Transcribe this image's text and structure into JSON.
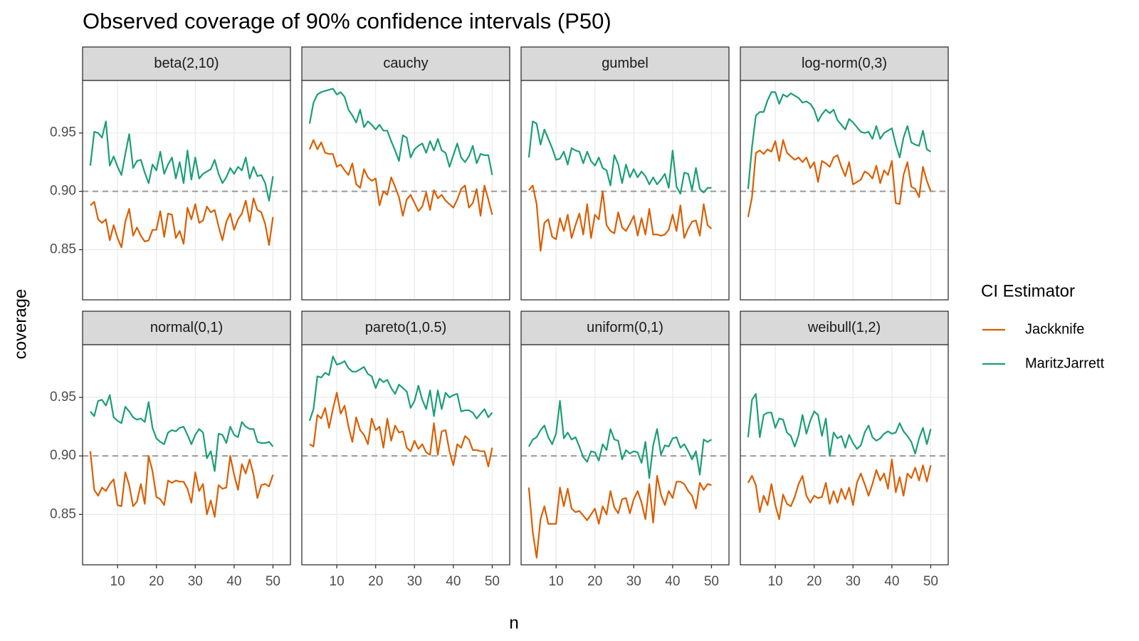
{
  "chart_data": {
    "type": "line",
    "title": "Observed coverage of 90% confidence intervals (P50)",
    "x_label": "n",
    "y_label": "coverage",
    "legend_title": "CI Estimator",
    "x": [
      3,
      4,
      5,
      6,
      7,
      8,
      9,
      10,
      11,
      12,
      13,
      14,
      15,
      16,
      17,
      18,
      19,
      20,
      21,
      22,
      23,
      24,
      25,
      26,
      27,
      28,
      29,
      30,
      31,
      32,
      33,
      34,
      35,
      36,
      37,
      38,
      39,
      40,
      41,
      42,
      43,
      44,
      45,
      46,
      47,
      48,
      49,
      50
    ],
    "xlim": [
      1,
      54.5
    ],
    "ylim": [
      0.807,
      0.995
    ],
    "xticks": [
      10,
      20,
      30,
      40,
      50
    ],
    "yticks": [
      0.85,
      {
        "value": 0.9,
        "label": "0.90"
      },
      0.95
    ],
    "hline": 0.9,
    "grid": true,
    "facets": [
      {
        "title": "beta(2,10)",
        "series": [
          {
            "name": "Jackknife",
            "color": "#d95f02",
            "values": [
              0.888,
              0.891,
              0.876,
              0.873,
              0.876,
              0.858,
              0.871,
              0.86,
              0.852,
              0.874,
              0.885,
              0.862,
              0.869,
              0.862,
              0.857,
              0.858,
              0.867,
              0.867,
              0.883,
              0.861,
              0.881,
              0.88,
              0.86,
              0.866,
              0.855,
              0.886,
              0.876,
              0.889,
              0.873,
              0.875,
              0.887,
              0.882,
              0.884,
              0.87,
              0.858,
              0.874,
              0.881,
              0.867,
              0.876,
              0.881,
              0.892,
              0.874,
              0.894,
              0.884,
              0.882,
              0.872,
              0.854,
              0.878
            ]
          },
          {
            "name": "MaritzJarrett",
            "color": "#1b9e77",
            "values": [
              0.922,
              0.951,
              0.95,
              0.946,
              0.96,
              0.922,
              0.93,
              0.921,
              0.914,
              0.932,
              0.949,
              0.92,
              0.926,
              0.927,
              0.916,
              0.907,
              0.923,
              0.918,
              0.934,
              0.915,
              0.923,
              0.929,
              0.911,
              0.925,
              0.907,
              0.935,
              0.91,
              0.929,
              0.911,
              0.915,
              0.917,
              0.919,
              0.927,
              0.915,
              0.907,
              0.912,
              0.92,
              0.915,
              0.921,
              0.918,
              0.929,
              0.911,
              0.921,
              0.913,
              0.914,
              0.907,
              0.892,
              0.913
            ]
          }
        ]
      },
      {
        "title": "cauchy",
        "series": [
          {
            "name": "Jackknife",
            "color": "#d95f02",
            "values": [
              0.936,
              0.944,
              0.936,
              0.942,
              0.933,
              0.932,
              0.932,
              0.921,
              0.923,
              0.918,
              0.914,
              0.924,
              0.906,
              0.903,
              0.919,
              0.912,
              0.909,
              0.911,
              0.888,
              0.9,
              0.897,
              0.912,
              0.904,
              0.895,
              0.879,
              0.893,
              0.897,
              0.89,
              0.883,
              0.887,
              0.899,
              0.884,
              0.901,
              0.894,
              0.897,
              0.892,
              0.889,
              0.886,
              0.893,
              0.902,
              0.905,
              0.886,
              0.89,
              0.902,
              0.879,
              0.905,
              0.893,
              0.88
            ]
          },
          {
            "name": "MaritzJarrett",
            "color": "#1b9e77",
            "values": [
              0.958,
              0.976,
              0.983,
              0.985,
              0.986,
              0.987,
              0.988,
              0.983,
              0.985,
              0.981,
              0.97,
              0.965,
              0.959,
              0.97,
              0.955,
              0.96,
              0.957,
              0.953,
              0.957,
              0.952,
              0.952,
              0.943,
              0.935,
              0.926,
              0.948,
              0.946,
              0.929,
              0.936,
              0.939,
              0.941,
              0.933,
              0.943,
              0.935,
              0.945,
              0.935,
              0.933,
              0.921,
              0.931,
              0.941,
              0.929,
              0.925,
              0.93,
              0.939,
              0.924,
              0.932,
              0.931,
              0.931,
              0.914
            ]
          }
        ]
      },
      {
        "title": "gumbel",
        "series": [
          {
            "name": "Jackknife",
            "color": "#d95f02",
            "values": [
              0.901,
              0.905,
              0.889,
              0.849,
              0.873,
              0.876,
              0.861,
              0.859,
              0.877,
              0.866,
              0.88,
              0.86,
              0.871,
              0.881,
              0.863,
              0.889,
              0.86,
              0.88,
              0.876,
              0.9,
              0.871,
              0.866,
              0.864,
              0.882,
              0.869,
              0.866,
              0.872,
              0.879,
              0.862,
              0.877,
              0.863,
              0.885,
              0.863,
              0.863,
              0.862,
              0.863,
              0.867,
              0.88,
              0.866,
              0.888,
              0.86,
              0.868,
              0.874,
              0.875,
              0.862,
              0.889,
              0.871,
              0.868
            ]
          },
          {
            "name": "MaritzJarrett",
            "color": "#1b9e77",
            "values": [
              0.929,
              0.96,
              0.958,
              0.94,
              0.953,
              0.945,
              0.937,
              0.927,
              0.928,
              0.934,
              0.923,
              0.937,
              0.935,
              0.934,
              0.924,
              0.934,
              0.926,
              0.922,
              0.929,
              0.92,
              0.918,
              0.905,
              0.931,
              0.923,
              0.907,
              0.923,
              0.912,
              0.919,
              0.912,
              0.917,
              0.913,
              0.906,
              0.912,
              0.906,
              0.91,
              0.915,
              0.903,
              0.935,
              0.904,
              0.898,
              0.916,
              0.915,
              0.901,
              0.92,
              0.902,
              0.899,
              0.903,
              0.903
            ]
          }
        ]
      },
      {
        "title": "log-norm(0,3)",
        "series": [
          {
            "name": "Jackknife",
            "color": "#d95f02",
            "values": [
              0.878,
              0.895,
              0.933,
              0.935,
              0.932,
              0.936,
              0.934,
              0.943,
              0.926,
              0.944,
              0.933,
              0.93,
              0.927,
              0.929,
              0.925,
              0.929,
              0.92,
              0.925,
              0.908,
              0.926,
              0.924,
              0.921,
              0.929,
              0.931,
              0.921,
              0.913,
              0.925,
              0.906,
              0.908,
              0.91,
              0.917,
              0.915,
              0.911,
              0.922,
              0.907,
              0.918,
              0.914,
              0.926,
              0.89,
              0.889,
              0.914,
              0.925,
              0.904,
              0.902,
              0.895,
              0.921,
              0.909,
              0.9
            ]
          },
          {
            "name": "MaritzJarrett",
            "color": "#1b9e77",
            "values": [
              0.902,
              0.938,
              0.965,
              0.968,
              0.968,
              0.978,
              0.985,
              0.985,
              0.975,
              0.983,
              0.981,
              0.984,
              0.982,
              0.98,
              0.976,
              0.977,
              0.975,
              0.97,
              0.96,
              0.966,
              0.97,
              0.967,
              0.97,
              0.961,
              0.957,
              0.953,
              0.962,
              0.959,
              0.955,
              0.951,
              0.95,
              0.951,
              0.945,
              0.956,
              0.945,
              0.95,
              0.952,
              0.954,
              0.94,
              0.929,
              0.946,
              0.956,
              0.942,
              0.94,
              0.939,
              0.952,
              0.936,
              0.934
            ]
          }
        ]
      },
      {
        "title": "normal(0,1)",
        "series": [
          {
            "name": "Jackknife",
            "color": "#d95f02",
            "values": [
              0.904,
              0.871,
              0.866,
              0.873,
              0.87,
              0.876,
              0.88,
              0.858,
              0.857,
              0.886,
              0.875,
              0.857,
              0.861,
              0.876,
              0.859,
              0.9,
              0.887,
              0.865,
              0.863,
              0.858,
              0.879,
              0.877,
              0.879,
              0.878,
              0.878,
              0.872,
              0.86,
              0.886,
              0.87,
              0.876,
              0.85,
              0.862,
              0.848,
              0.875,
              0.872,
              0.873,
              0.9,
              0.884,
              0.871,
              0.893,
              0.885,
              0.897,
              0.884,
              0.864,
              0.875,
              0.876,
              0.874,
              0.884
            ]
          },
          {
            "name": "MaritzJarrett",
            "color": "#1b9e77",
            "values": [
              0.938,
              0.934,
              0.947,
              0.948,
              0.943,
              0.952,
              0.933,
              0.93,
              0.928,
              0.942,
              0.938,
              0.933,
              0.931,
              0.932,
              0.929,
              0.946,
              0.924,
              0.915,
              0.912,
              0.91,
              0.92,
              0.922,
              0.921,
              0.924,
              0.925,
              0.918,
              0.91,
              0.918,
              0.923,
              0.92,
              0.898,
              0.904,
              0.887,
              0.919,
              0.918,
              0.911,
              0.925,
              0.918,
              0.916,
              0.929,
              0.925,
              0.923,
              0.923,
              0.912,
              0.911,
              0.911,
              0.912,
              0.908
            ]
          }
        ]
      },
      {
        "title": "pareto(1,0.5)",
        "series": [
          {
            "name": "Jackknife",
            "color": "#d95f02",
            "values": [
              0.91,
              0.908,
              0.935,
              0.932,
              0.941,
              0.924,
              0.94,
              0.954,
              0.936,
              0.943,
              0.925,
              0.912,
              0.933,
              0.922,
              0.918,
              0.91,
              0.932,
              0.922,
              0.925,
              0.907,
              0.932,
              0.913,
              0.926,
              0.92,
              0.921,
              0.907,
              0.904,
              0.913,
              0.906,
              0.91,
              0.903,
              0.901,
              0.928,
              0.901,
              0.921,
              0.922,
              0.904,
              0.892,
              0.91,
              0.907,
              0.917,
              0.914,
              0.905,
              0.905,
              0.904,
              0.904,
              0.891,
              0.907
            ]
          },
          {
            "name": "MaritzJarrett",
            "color": "#1b9e77",
            "values": [
              0.93,
              0.94,
              0.968,
              0.967,
              0.971,
              0.969,
              0.985,
              0.978,
              0.979,
              0.981,
              0.975,
              0.972,
              0.972,
              0.974,
              0.976,
              0.97,
              0.968,
              0.958,
              0.966,
              0.963,
              0.965,
              0.958,
              0.953,
              0.961,
              0.958,
              0.955,
              0.941,
              0.947,
              0.96,
              0.948,
              0.94,
              0.956,
              0.934,
              0.956,
              0.94,
              0.954,
              0.95,
              0.952,
              0.953,
              0.938,
              0.939,
              0.939,
              0.937,
              0.932,
              0.936,
              0.94,
              0.933,
              0.937
            ]
          }
        ]
      },
      {
        "title": "uniform(0,1)",
        "series": [
          {
            "name": "Jackknife",
            "color": "#d95f02",
            "values": [
              0.873,
              0.835,
              0.813,
              0.846,
              0.857,
              0.842,
              0.842,
              0.842,
              0.873,
              0.857,
              0.872,
              0.855,
              0.852,
              0.853,
              0.849,
              0.845,
              0.85,
              0.855,
              0.842,
              0.857,
              0.85,
              0.87,
              0.856,
              0.851,
              0.863,
              0.864,
              0.851,
              0.863,
              0.87,
              0.86,
              0.846,
              0.876,
              0.843,
              0.883,
              0.867,
              0.858,
              0.87,
              0.864,
              0.878,
              0.878,
              0.876,
              0.87,
              0.866,
              0.855,
              0.877,
              0.871,
              0.876,
              0.875
            ]
          },
          {
            "name": "MaritzJarrett",
            "color": "#1b9e77",
            "values": [
              0.908,
              0.914,
              0.916,
              0.922,
              0.926,
              0.916,
              0.91,
              0.919,
              0.947,
              0.915,
              0.92,
              0.914,
              0.916,
              0.908,
              0.899,
              0.895,
              0.904,
              0.903,
              0.896,
              0.91,
              0.905,
              0.923,
              0.914,
              0.913,
              0.897,
              0.905,
              0.902,
              0.904,
              0.903,
              0.894,
              0.912,
              0.881,
              0.909,
              0.923,
              0.901,
              0.909,
              0.908,
              0.915,
              0.916,
              0.907,
              0.91,
              0.904,
              0.897,
              0.904,
              0.884,
              0.914,
              0.912,
              0.914
            ]
          }
        ]
      },
      {
        "title": "weibull(1,2)",
        "series": [
          {
            "name": "Jackknife",
            "color": "#d95f02",
            "values": [
              0.877,
              0.883,
              0.875,
              0.852,
              0.866,
              0.858,
              0.876,
              0.858,
              0.846,
              0.867,
              0.859,
              0.857,
              0.865,
              0.876,
              0.883,
              0.866,
              0.86,
              0.866,
              0.864,
              0.865,
              0.877,
              0.859,
              0.87,
              0.86,
              0.872,
              0.863,
              0.873,
              0.858,
              0.877,
              0.885,
              0.876,
              0.866,
              0.876,
              0.888,
              0.879,
              0.885,
              0.872,
              0.897,
              0.869,
              0.882,
              0.866,
              0.885,
              0.881,
              0.89,
              0.879,
              0.892,
              0.878,
              0.892
            ]
          },
          {
            "name": "MaritzJarrett",
            "color": "#1b9e77",
            "values": [
              0.916,
              0.948,
              0.953,
              0.916,
              0.935,
              0.937,
              0.937,
              0.924,
              0.932,
              0.931,
              0.92,
              0.917,
              0.908,
              0.918,
              0.935,
              0.919,
              0.93,
              0.938,
              0.935,
              0.917,
              0.932,
              0.9,
              0.92,
              0.915,
              0.917,
              0.907,
              0.918,
              0.911,
              0.906,
              0.909,
              0.92,
              0.926,
              0.916,
              0.913,
              0.915,
              0.919,
              0.921,
              0.919,
              0.92,
              0.928,
              0.921,
              0.917,
              0.912,
              0.902,
              0.915,
              0.924,
              0.91,
              0.923
            ]
          }
        ]
      }
    ]
  }
}
